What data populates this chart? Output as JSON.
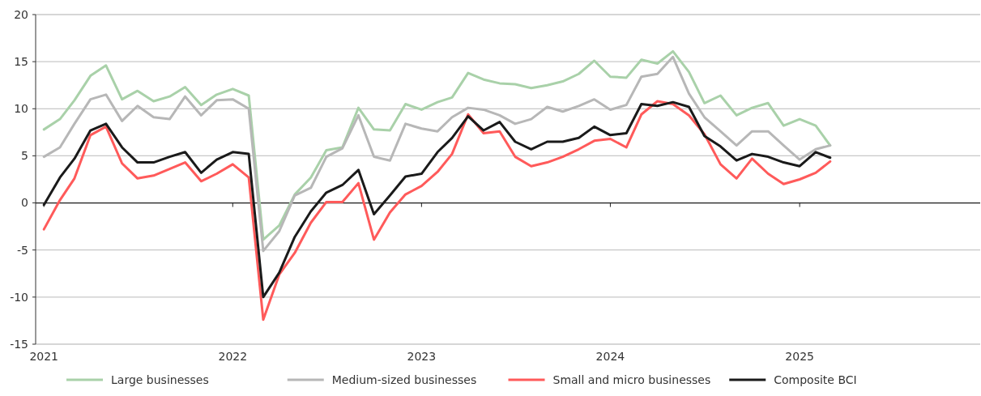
{
  "chart_data": {
    "type": "line",
    "x": [
      "2021-01",
      "2021-02",
      "2021-03",
      "2021-04",
      "2021-05",
      "2021-06",
      "2021-07",
      "2021-08",
      "2021-09",
      "2021-10",
      "2021-11",
      "2021-12",
      "2022-01",
      "2022-02",
      "2022-03",
      "2022-04",
      "2022-05",
      "2022-06",
      "2022-07",
      "2022-08",
      "2022-09",
      "2022-10",
      "2022-11",
      "2022-12",
      "2023-01",
      "2023-02",
      "2023-03",
      "2023-04",
      "2023-05",
      "2023-06",
      "2023-07",
      "2023-08",
      "2023-09",
      "2023-10",
      "2023-11",
      "2023-12",
      "2024-01",
      "2024-02",
      "2024-03",
      "2024-04",
      "2024-05",
      "2024-06",
      "2024-07",
      "2024-08",
      "2024-09",
      "2024-10",
      "2024-11",
      "2024-12",
      "2025-01",
      "2025-02",
      "2025-03"
    ],
    "series": [
      {
        "name": "Large businesses",
        "color": "#a9d1a9",
        "values": [
          7.8,
          8.9,
          10.9,
          13.5,
          14.6,
          11.0,
          11.9,
          10.8,
          11.3,
          12.3,
          10.4,
          11.5,
          12.1,
          11.4,
          -3.9,
          -2.4,
          0.9,
          2.7,
          5.6,
          5.9,
          10.1,
          7.8,
          7.7,
          10.5,
          9.9,
          10.7,
          11.2,
          13.8,
          13.1,
          12.7,
          12.6,
          12.2,
          12.5,
          12.9,
          13.7,
          15.1,
          13.4,
          13.3,
          15.2,
          14.8,
          16.1,
          13.9,
          10.6,
          11.4,
          9.3,
          10.1,
          10.6,
          8.2,
          8.9,
          8.2,
          6.1
        ]
      },
      {
        "name": "Medium-sized businesses",
        "color": "#b7b7b7",
        "values": [
          4.9,
          5.9,
          8.4,
          11.0,
          11.5,
          8.7,
          10.3,
          9.1,
          8.9,
          11.3,
          9.3,
          10.9,
          11.0,
          10.0,
          -5.1,
          -3.0,
          0.8,
          1.6,
          4.9,
          5.8,
          9.3,
          4.9,
          4.5,
          8.4,
          7.9,
          7.6,
          9.1,
          10.1,
          9.9,
          9.3,
          8.4,
          8.9,
          10.2,
          9.7,
          10.3,
          11.0,
          9.9,
          10.4,
          13.4,
          13.7,
          15.5,
          11.6,
          9.1,
          7.6,
          6.1,
          7.6,
          7.6,
          6.1,
          4.6,
          5.7,
          6.1
        ]
      },
      {
        "name": "Small and micro businesses",
        "color": "#ff5a5a",
        "values": [
          -2.8,
          0.3,
          2.6,
          7.2,
          8.1,
          4.2,
          2.6,
          2.9,
          3.6,
          4.3,
          2.3,
          3.1,
          4.1,
          2.7,
          -12.4,
          -7.6,
          -5.3,
          -2.1,
          0.1,
          0.1,
          2.1,
          -3.9,
          -1.0,
          0.9,
          1.8,
          3.3,
          5.2,
          9.4,
          7.4,
          7.6,
          4.9,
          3.9,
          4.3,
          4.9,
          5.7,
          6.6,
          6.8,
          5.9,
          9.4,
          10.8,
          10.5,
          9.3,
          7.3,
          4.1,
          2.6,
          4.7,
          3.1,
          2.0,
          2.5,
          3.2,
          4.4
        ]
      },
      {
        "name": "Composite BCI",
        "color": "#1a1a1a",
        "values": [
          -0.2,
          2.7,
          4.7,
          7.7,
          8.4,
          5.9,
          4.3,
          4.3,
          4.9,
          5.4,
          3.2,
          4.6,
          5.4,
          5.2,
          -10.0,
          -7.4,
          -3.6,
          -0.9,
          1.1,
          1.9,
          3.5,
          -1.2,
          0.8,
          2.8,
          3.1,
          5.4,
          6.9,
          9.2,
          7.7,
          8.6,
          6.5,
          5.7,
          6.5,
          6.5,
          6.9,
          8.1,
          7.2,
          7.4,
          10.5,
          10.3,
          10.7,
          10.2,
          7.1,
          6.0,
          4.5,
          5.2,
          4.9,
          4.3,
          3.9,
          5.4,
          4.8
        ]
      }
    ],
    "xlim": [
      "2020-12-16",
      "2025-12-16"
    ],
    "xticks": [
      {
        "value": "2021-01",
        "label": "2021"
      },
      {
        "value": "2022-01",
        "label": "2022"
      },
      {
        "value": "2023-01",
        "label": "2023"
      },
      {
        "value": "2024-01",
        "label": "2024"
      },
      {
        "value": "2025-01",
        "label": "2025"
      }
    ],
    "ylim": [
      -15,
      20
    ],
    "yticks": [
      -15,
      -10,
      -5,
      0,
      5,
      10,
      15,
      20
    ],
    "grid": "y",
    "legend": "bottom",
    "marker": "none",
    "line_style": "solid"
  }
}
